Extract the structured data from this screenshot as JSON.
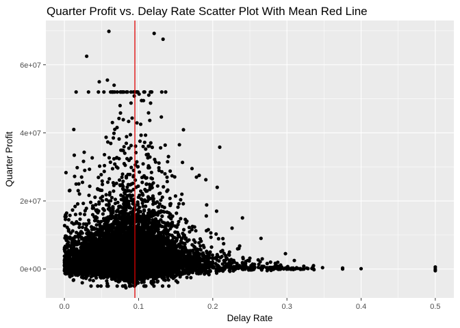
{
  "chart_data": {
    "type": "scatter",
    "title": "Quarter Profit vs. Delay Rate Scatter Plot With Mean Red Line",
    "xlabel": "Delay Rate",
    "ylabel": "Quarter Profit",
    "xlim": [
      -0.025,
      0.525
    ],
    "ylim": [
      -8500000,
      73000000
    ],
    "x_ticks": [
      0.0,
      0.1,
      0.2,
      0.3,
      0.4,
      0.5
    ],
    "x_tick_labels": [
      "0.0",
      "0.1",
      "0.2",
      "0.3",
      "0.4",
      "0.5"
    ],
    "y_ticks": [
      0,
      20000000,
      40000000,
      60000000
    ],
    "y_tick_labels": [
      "0e+00",
      "2e+07",
      "4e+07",
      "6e+07"
    ],
    "mean_line": {
      "x": 0.095,
      "color": "#e00000"
    },
    "grid": true,
    "legend": "none",
    "colors": {
      "panel": "#ebebeb",
      "grid": "#ffffff",
      "points": "#000000",
      "mean_line": "#e00000"
    },
    "cluster": {
      "core": {
        "x_mean": 0.09,
        "x_sd": 0.038,
        "y_median": 4000000
      },
      "tail_to_x": 0.35,
      "n_points_approx": 9000
    },
    "points": [
      {
        "x": 0.06,
        "y": 69800000
      },
      {
        "x": 0.121,
        "y": 69200000
      },
      {
        "x": 0.133,
        "y": 67500000
      },
      {
        "x": 0.03,
        "y": 62500000
      },
      {
        "x": 0.058,
        "y": 55500000
      },
      {
        "x": 0.047,
        "y": 55000000
      },
      {
        "x": 0.067,
        "y": 54000000
      },
      {
        "x": 0.104,
        "y": 49500000
      },
      {
        "x": 0.075,
        "y": 48000000
      },
      {
        "x": 0.155,
        "y": 36500000
      },
      {
        "x": 0.172,
        "y": 29500000
      },
      {
        "x": 0.178,
        "y": 27000000
      },
      {
        "x": 0.206,
        "y": 24000000
      },
      {
        "x": 0.226,
        "y": 12000000
      },
      {
        "x": 0.24,
        "y": 15000000
      },
      {
        "x": 0.265,
        "y": 9000000
      },
      {
        "x": 0.298,
        "y": 4500000
      },
      {
        "x": 0.31,
        "y": 2500000
      },
      {
        "x": 0.335,
        "y": 600000
      },
      {
        "x": 0.348,
        "y": 400000
      },
      {
        "x": 0.375,
        "y": 300000
      },
      {
        "x": 0.375,
        "y": 0
      },
      {
        "x": 0.4,
        "y": 100000
      },
      {
        "x": 0.5,
        "y": 0
      },
      {
        "x": 0.5,
        "y": 600000
      },
      {
        "x": 0.5,
        "y": -500000
      },
      {
        "x": 0.0,
        "y": 2500000
      },
      {
        "x": 0.0,
        "y": -500000
      },
      {
        "x": 0.0,
        "y": 1000000
      },
      {
        "x": 0.083,
        "y": -5500000
      },
      {
        "x": 0.057,
        "y": -3500000
      },
      {
        "x": 0.117,
        "y": -4000000
      }
    ]
  }
}
